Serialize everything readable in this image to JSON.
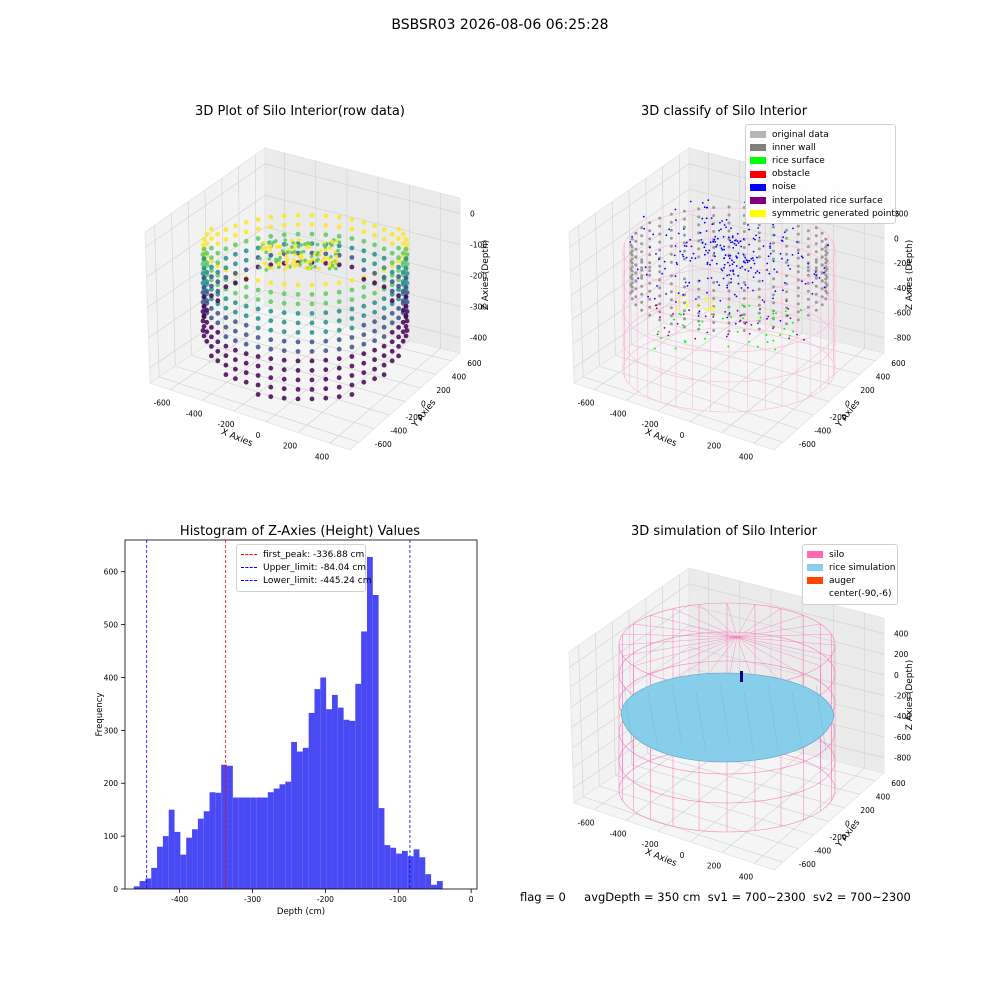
{
  "figure": {
    "suptitle": "BSBSR03 2026-08-06 06:25:28"
  },
  "colors": {
    "viridis": [
      "#440154",
      "#3b528b",
      "#21908d",
      "#5dc963",
      "#fde725"
    ],
    "pink": "#ff69b4",
    "skyblue": "#87ceeb",
    "hist_bar": "#4a4af5"
  },
  "chart_data": [
    {
      "type": "scatter",
      "title": "3D Plot of Silo Interior(row data)",
      "xlabel": "X Axies",
      "ylabel": "Y Axies",
      "zlabel": "Z Axies (Depth)",
      "x_ticks": [
        "-600",
        "-400",
        "-200",
        "0",
        "200",
        "400"
      ],
      "y_ticks": [
        "-600",
        "-400",
        "-200",
        "0",
        "200",
        "400",
        "600"
      ],
      "z_ticks": [
        "0",
        "-100",
        "-200",
        "-300",
        "-400"
      ],
      "grid": true
    },
    {
      "type": "scatter",
      "title": "3D classify of Silo Interior",
      "xlabel": "X Axies",
      "ylabel": "Y Axies",
      "zlabel": "Z Axies (Depth)",
      "x_ticks": [
        "-600",
        "-400",
        "-200",
        "0",
        "200",
        "400"
      ],
      "y_ticks": [
        "-600",
        "-400",
        "-200",
        "0",
        "200",
        "400",
        "600"
      ],
      "z_ticks": [
        "200",
        "0",
        "-200",
        "-400",
        "-600",
        "-800"
      ],
      "legend_position": "top-right",
      "legend": [
        {
          "label": "original data",
          "color": "#b5b5b5"
        },
        {
          "label": "inner wall",
          "color": "#808080"
        },
        {
          "label": "rice surface",
          "color": "#00ff00"
        },
        {
          "label": "obstacle",
          "color": "#ff0000"
        },
        {
          "label": "noise",
          "color": "#0000ff"
        },
        {
          "label": "interpolated rice surface",
          "color": "#800080"
        },
        {
          "label": "symmetric generated points",
          "color": "#ffff00"
        }
      ]
    },
    {
      "type": "bar",
      "title": "Histogram of Z-Axies (Height) Values",
      "xlabel": "Depth (cm)",
      "ylabel": "Frequency",
      "xlim": [
        -475,
        8
      ],
      "ylim": [
        0,
        660
      ],
      "x_ticks": [
        -400,
        -300,
        -200,
        -100,
        0
      ],
      "y_ticks": [
        0,
        100,
        200,
        300,
        400,
        500,
        600
      ],
      "bins": [
        [
          -463,
          -455,
          5
        ],
        [
          -455,
          -447,
          15
        ],
        [
          -447,
          -439,
          20
        ],
        [
          -439,
          -431,
          40
        ],
        [
          -431,
          -423,
          80
        ],
        [
          -423,
          -415,
          100
        ],
        [
          -415,
          -407,
          150
        ],
        [
          -407,
          -399,
          108
        ],
        [
          -399,
          -391,
          65
        ],
        [
          -391,
          -383,
          97
        ],
        [
          -383,
          -375,
          113
        ],
        [
          -375,
          -367,
          133
        ],
        [
          -367,
          -359,
          147
        ],
        [
          -359,
          -351,
          183
        ],
        [
          -351,
          -343,
          182
        ],
        [
          -343,
          -335,
          235
        ],
        [
          -335,
          -327,
          233
        ],
        [
          -327,
          -319,
          173
        ],
        [
          -319,
          -311,
          173
        ],
        [
          -311,
          -303,
          173
        ],
        [
          -303,
          -295,
          173
        ],
        [
          -295,
          -287,
          173
        ],
        [
          -287,
          -279,
          173
        ],
        [
          -279,
          -271,
          183
        ],
        [
          -271,
          -263,
          190
        ],
        [
          -263,
          -255,
          198
        ],
        [
          -255,
          -247,
          203
        ],
        [
          -247,
          -239,
          278
        ],
        [
          -239,
          -231,
          260
        ],
        [
          -231,
          -223,
          267
        ],
        [
          -223,
          -215,
          333
        ],
        [
          -215,
          -207,
          378
        ],
        [
          -207,
          -199,
          400
        ],
        [
          -199,
          -191,
          340
        ],
        [
          -191,
          -183,
          367
        ],
        [
          -183,
          -175,
          343
        ],
        [
          -175,
          -167,
          320
        ],
        [
          -167,
          -159,
          318
        ],
        [
          -159,
          -151,
          388
        ],
        [
          -151,
          -143,
          487
        ],
        [
          -143,
          -135,
          628
        ],
        [
          -135,
          -127,
          556
        ],
        [
          -127,
          -119,
          153
        ],
        [
          -119,
          -111,
          83
        ],
        [
          -111,
          -103,
          78
        ],
        [
          -103,
          -95,
          67
        ],
        [
          -95,
          -87,
          72
        ],
        [
          -87,
          -79,
          62
        ],
        [
          -79,
          -71,
          75
        ],
        [
          -71,
          -63,
          60
        ],
        [
          -63,
          -55,
          28
        ],
        [
          -55,
          -47,
          8
        ],
        [
          -47,
          -39,
          15
        ]
      ],
      "vlines": [
        {
          "label": "first_peak: -336.88 cm",
          "x": -336.88,
          "color": "#ff0000"
        },
        {
          "label": "Upper_limit: -84.04 cm",
          "x": -84.04,
          "color": "#0000ff"
        },
        {
          "label": "Lower_limit: -445.24 cm",
          "x": -445.24,
          "color": "#0000ff"
        }
      ],
      "legend_position": "top-center",
      "grid": false
    },
    {
      "type": "scatter",
      "title": "3D simulation of Silo Interior",
      "xlabel": "X Axies",
      "ylabel": "Y Axies",
      "zlabel": "Z Axies (Depth)",
      "x_ticks": [
        "-600",
        "-400",
        "-200",
        "0",
        "200",
        "400"
      ],
      "y_ticks": [
        "-600",
        "-400",
        "-200",
        "0",
        "200",
        "400",
        "600"
      ],
      "z_ticks": [
        "400",
        "200",
        "0",
        "-200",
        "-400",
        "-600",
        "-800"
      ],
      "legend_position": "top-right",
      "legend": [
        {
          "label": "silo",
          "color": "#ff69b4"
        },
        {
          "label": "rice simulation",
          "color": "#87ceeb"
        },
        {
          "label": "auger",
          "color": "#ff4500"
        },
        {
          "label": "center(-90,-6)",
          "color": ""
        }
      ]
    }
  ],
  "footer": {
    "flag": "flag = 0",
    "avg": "avgDepth = 350 cm",
    "sv1": "sv1 = 700~2300",
    "sv2": "sv2 = 700~2300"
  }
}
